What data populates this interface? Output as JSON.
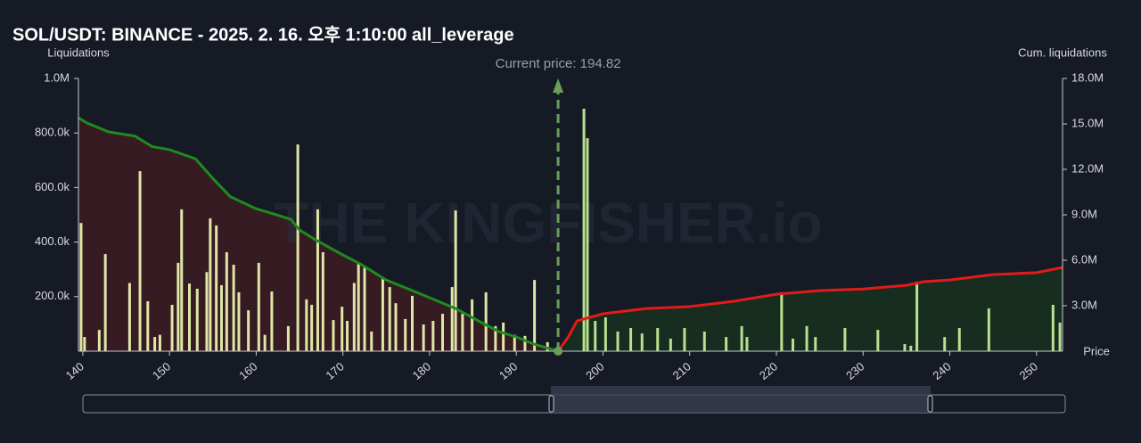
{
  "chart_data": {
    "type": "bar",
    "title": "SOL/USDT: BINANCE - 2025. 2. 16. 오후 1:10:00 all_leverage",
    "y_label": "Liquidations",
    "y2_label": "Cum. liquidations",
    "x_label": "Price",
    "watermark": "THE KINGFISHER.io",
    "current_price": 194.82,
    "current_price_label": "Current price: 194.82",
    "current_price_color": "#6a9e5a",
    "xlim": [
      139.5,
      253
    ],
    "xticks": [
      140,
      150,
      160,
      170,
      180,
      190,
      200,
      210,
      220,
      230,
      240,
      250
    ],
    "ylim": [
      0,
      1000000
    ],
    "yticks": [
      {
        "value": 200000,
        "label": "200.0k"
      },
      {
        "value": 400000,
        "label": "400.0k"
      },
      {
        "value": 600000,
        "label": "600.0k"
      },
      {
        "value": 800000,
        "label": "800.0k"
      },
      {
        "value": 1000000,
        "label": "1.0M"
      }
    ],
    "y2lim": [
      0,
      18000000
    ],
    "y2ticks": [
      {
        "value": 3000000,
        "label": "3.0M"
      },
      {
        "value": 6000000,
        "label": "6.0M"
      },
      {
        "value": 9000000,
        "label": "9.0M"
      },
      {
        "value": 12000000,
        "label": "12.0M"
      },
      {
        "value": 15000000,
        "label": "15.0M"
      },
      {
        "value": 18000000,
        "label": "18.0M"
      }
    ],
    "bars": [
      {
        "color": "#dfe6a6",
        "x": [
          139.8,
          140.2,
          141.9,
          142.6,
          145.4,
          146.6,
          147.5,
          148.3,
          148.9,
          150.3,
          151,
          151.4,
          152.3,
          153.2,
          154.3,
          154.7,
          155.4,
          156,
          156.6,
          157.4,
          158,
          159.1,
          160.3,
          161,
          161.8,
          163.7,
          164.8,
          165.8,
          166.4,
          167.1,
          167.7,
          168.9,
          169.9,
          170.5,
          171.3,
          171.8,
          172.5,
          173.3,
          174.6,
          175.4,
          176.1,
          177.2,
          178,
          179.3,
          180.4,
          181.5,
          182.6,
          183,
          183.8,
          184.9,
          186.5,
          187.6,
          188.5,
          189.8,
          191,
          192.1,
          193.6
        ],
        "values": [
          470000,
          52000,
          78000,
          356000,
          250000,
          660000,
          183000,
          52000,
          60000,
          170000,
          324000,
          520000,
          248000,
          229000,
          290000,
          487000,
          461000,
          242000,
          363000,
          317000,
          216000,
          150000,
          324000,
          60000,
          219000,
          92000,
          758000,
          190000,
          170000,
          520000,
          363000,
          114000,
          163000,
          111000,
          250000,
          320000,
          307000,
          72000,
          268000,
          235000,
          176000,
          118000,
          203000,
          98000,
          111000,
          137000,
          235000,
          516000,
          137000,
          190000,
          216000,
          92000,
          105000,
          60000,
          56000,
          261000,
          33000
        ]
      },
      {
        "color": "#b8e08e",
        "x": [
          197.8,
          198.2,
          199.1,
          200.3,
          201.7,
          203.2,
          204.5,
          206.3,
          207.8,
          209.4,
          211.7,
          214.2,
          216,
          216.6,
          220.6,
          221.9,
          223.5,
          224.5,
          227.9,
          231.7,
          234.8,
          235.5,
          236.2,
          239.4,
          241.1,
          244.5,
          251.9,
          252.7
        ],
        "values": [
          889000,
          781000,
          111000,
          124000,
          72000,
          85000,
          65000,
          85000,
          46000,
          85000,
          72000,
          52000,
          92000,
          52000,
          216000,
          46000,
          92000,
          52000,
          85000,
          78000,
          26000,
          20000,
          255000,
          52000,
          85000,
          157000,
          170000,
          105000
        ]
      }
    ],
    "cumulative": [
      {
        "axis": "y2",
        "color": "#1f8a1f",
        "fill": "#3a1c24",
        "x": [
          139.5,
          140.5,
          143,
          146,
          148,
          150,
          153,
          155,
          157,
          160,
          162,
          164,
          165,
          167,
          170,
          172,
          175,
          178,
          180,
          183,
          186,
          188,
          190,
          192,
          194.82
        ],
        "values": [
          15400000,
          15060000,
          14470000,
          14200000,
          13500000,
          13300000,
          12700000,
          11400000,
          10200000,
          9400000,
          9060000,
          8700000,
          8000000,
          7300000,
          6350000,
          5760000,
          4700000,
          4000000,
          3530000,
          2820000,
          1880000,
          1290000,
          940000,
          470000,
          0
        ]
      },
      {
        "axis": "y2",
        "color": "#e01b1b",
        "fill": "#17301f",
        "x": [
          194.82,
          196,
          197,
          200,
          205,
          210,
          215,
          220,
          225,
          230,
          235,
          237,
          240,
          245,
          250,
          253
        ],
        "values": [
          0,
          940000,
          2000000,
          2470000,
          2820000,
          2940000,
          3290000,
          3760000,
          4000000,
          4100000,
          4350000,
          4590000,
          4700000,
          5060000,
          5180000,
          5530000
        ]
      }
    ]
  }
}
